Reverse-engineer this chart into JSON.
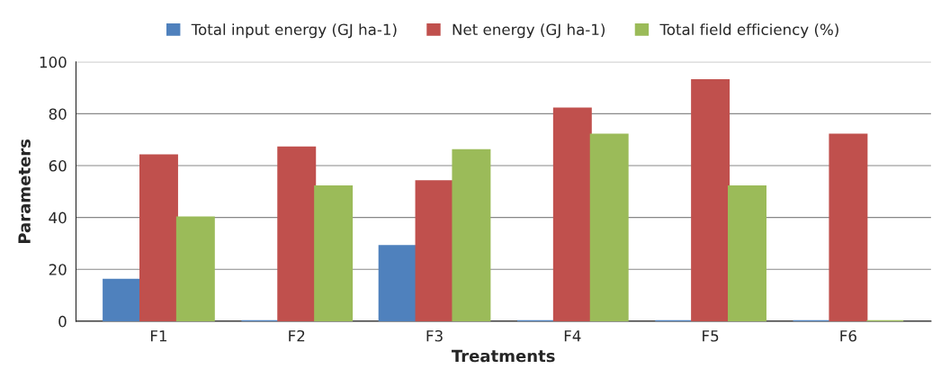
{
  "chart_data": {
    "type": "bar",
    "xlabel": "Treatments",
    "ylabel": "Parameters",
    "categories": [
      "F1",
      "F2",
      "F3",
      "F4",
      "F5",
      "F6"
    ],
    "series": [
      {
        "name": "Total input energy (GJ ha-1)",
        "color": "#4f81bd",
        "values": [
          16,
          0,
          29,
          0,
          0,
          0
        ]
      },
      {
        "name": "Net energy (GJ ha-1)",
        "color": "#c0504d",
        "values": [
          64,
          67,
          54,
          82,
          93,
          72
        ]
      },
      {
        "name": "Total field efficiency (%)",
        "color": "#9bbb59",
        "values": [
          40,
          52,
          66,
          72,
          52,
          0
        ]
      }
    ],
    "ylim": [
      0,
      100
    ],
    "yticks": [
      0,
      20,
      40,
      60,
      80,
      100
    ],
    "grid": "y",
    "legend": "top"
  }
}
